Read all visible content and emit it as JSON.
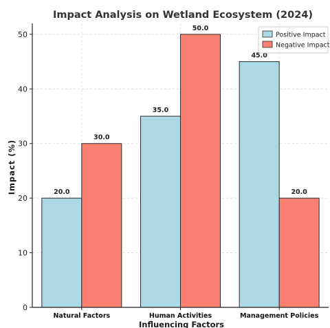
{
  "chart_data": {
    "type": "bar",
    "title": "Impact Analysis on Wetland Ecosystem (2024)",
    "xlabel": "Influencing Factors",
    "ylabel": "Impact (%)",
    "categories": [
      "Natural Factors",
      "Human Activities",
      "Management Policies"
    ],
    "series": [
      {
        "name": "Positive Impact",
        "values": [
          20,
          35,
          45
        ],
        "color": "#add8e6",
        "labels": [
          "20.0",
          "35.0",
          "45.0"
        ]
      },
      {
        "name": "Negative Impact",
        "values": [
          30,
          50,
          20
        ],
        "color": "#fa8072",
        "labels": [
          "30.0",
          "50.0",
          "20.0"
        ]
      }
    ],
    "ylim": [
      0,
      52
    ],
    "yticks": [
      0,
      10,
      20,
      30,
      40,
      50
    ],
    "grid": true,
    "legend": "top-right"
  }
}
